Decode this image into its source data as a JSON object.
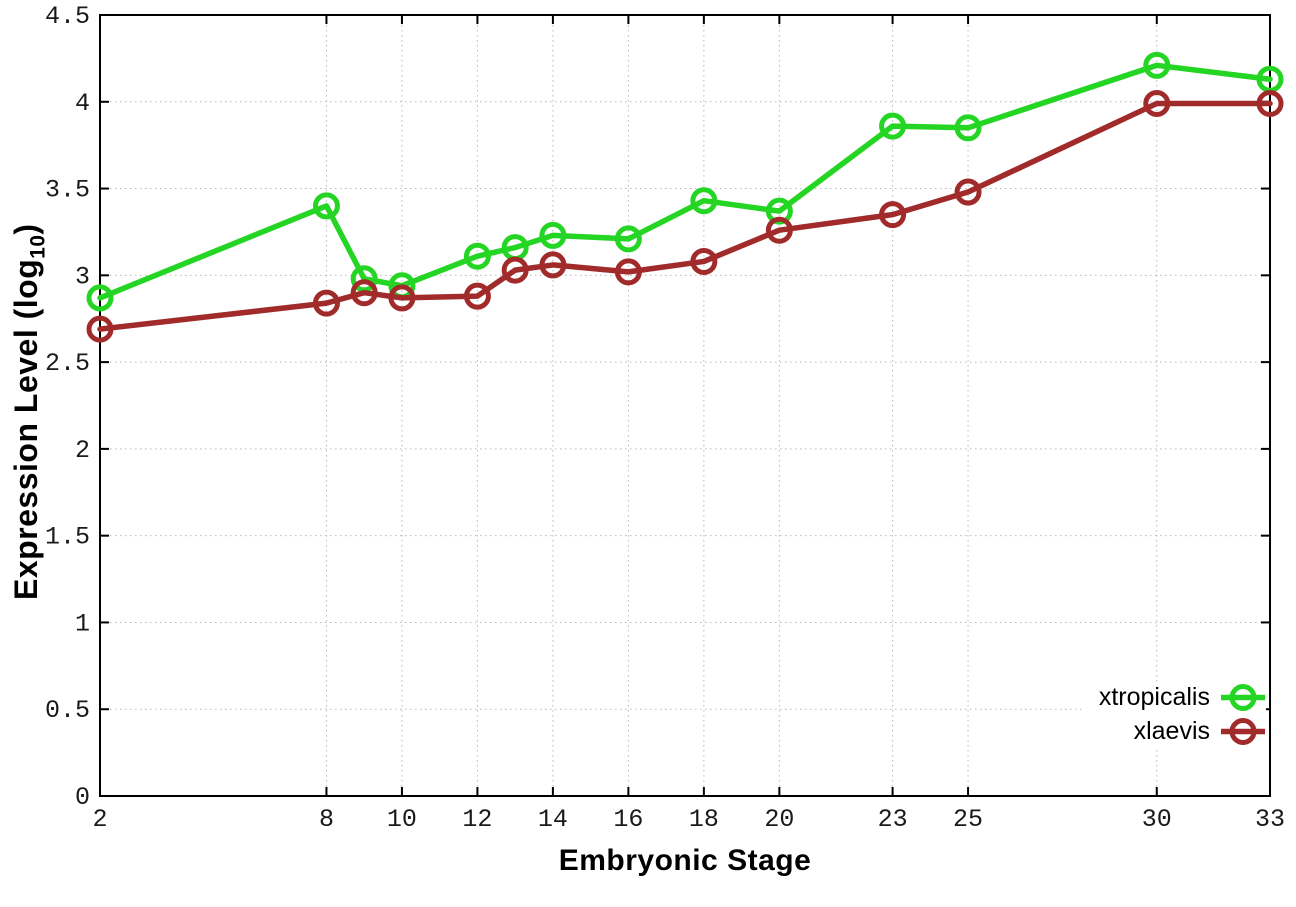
{
  "chart_data": {
    "type": "line",
    "title": "",
    "xlabel": "Embryonic Stage",
    "ylabel": "Expression Level (log10)",
    "ylabel_prefix": "Expression Level (log",
    "ylabel_sub": "10",
    "ylabel_suffix": ")",
    "x": [
      2,
      8,
      9,
      10,
      12,
      13,
      14,
      16,
      18,
      20,
      23,
      25,
      30,
      33
    ],
    "series": [
      {
        "name": "xtropicalis",
        "color": "#24d524",
        "values": [
          2.87,
          3.4,
          2.98,
          2.94,
          3.11,
          3.16,
          3.23,
          3.21,
          3.43,
          3.37,
          3.86,
          3.85,
          4.21,
          4.13
        ]
      },
      {
        "name": "xlaevis",
        "color": "#a12b2b",
        "values": [
          2.69,
          2.84,
          2.9,
          2.87,
          2.88,
          3.03,
          3.06,
          3.02,
          3.08,
          3.26,
          3.35,
          3.48,
          3.99,
          3.99
        ]
      }
    ],
    "xlim": [
      2,
      33
    ],
    "ylim": [
      0,
      4.5
    ],
    "xticks": [
      2,
      8,
      10,
      12,
      14,
      16,
      18,
      20,
      23,
      25,
      30,
      33
    ],
    "xtick_labels": [
      "2",
      "8",
      "10",
      "12",
      "14",
      "16",
      "18",
      "20",
      "23",
      "25",
      "30",
      "33"
    ],
    "yticks": [
      0,
      0.5,
      1,
      1.5,
      2,
      2.5,
      3,
      3.5,
      4,
      4.5
    ],
    "ytick_labels": [
      "0",
      "0.5",
      "1",
      "1.5",
      "2",
      "2.5",
      "3",
      "3.5",
      "4",
      "4.5"
    ],
    "grid": true,
    "grid_style": "dotted",
    "legend_position": "bottom-right",
    "marker": "open-circle",
    "colors": {
      "background": "#ffffff",
      "border": "#000000",
      "grid": "#b9b9b9",
      "tick_text": "#1a1a1a"
    }
  }
}
